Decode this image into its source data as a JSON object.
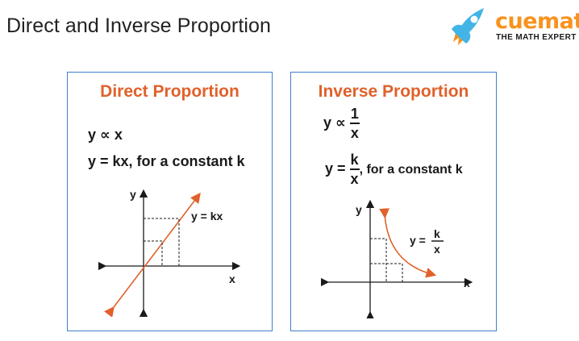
{
  "header": {
    "title": "Direct and Inverse Proportion"
  },
  "brand": {
    "name": "cuemath",
    "tagline": "THE MATH EXPERT",
    "colors": {
      "primary": "#f7931e",
      "accent": "#42b4e6"
    }
  },
  "colors": {
    "card_border": "#3f7fd1",
    "card_title": "#e0612b",
    "curve": "#e0612b"
  },
  "direct": {
    "title": "Direct Proportion",
    "statement": "y ∝ x",
    "equation": "y = kx, for a constant k",
    "graph": {
      "x_label": "x",
      "y_label": "y",
      "line_label": "y = kx"
    }
  },
  "inverse": {
    "title": "Inverse Proportion",
    "statement_lhs": "y ∝",
    "statement_num": "1",
    "statement_den": "x",
    "equation_lhs": "y =",
    "equation_num": "k",
    "equation_den": "x",
    "equation_suffix": ", for a constant k",
    "graph": {
      "x_label": "x",
      "y_label": "y",
      "curve_label_lhs": "y =",
      "curve_label_num": "k",
      "curve_label_den": "x"
    }
  }
}
